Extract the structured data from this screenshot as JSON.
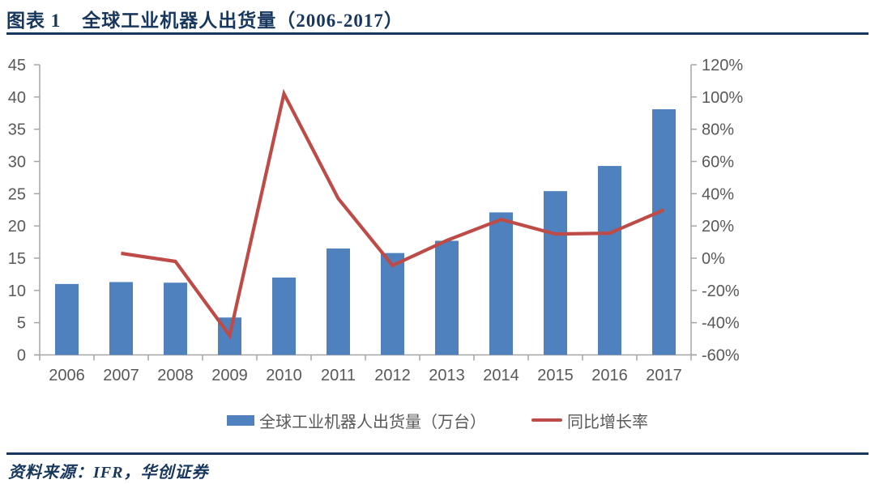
{
  "header": {
    "label": "图表  1",
    "title": "全球工业机器人出货量（2006-2017）"
  },
  "legend": {
    "bar_label": "全球工业机器人出货量（万台）",
    "line_label": "同比增长率"
  },
  "footer": {
    "source": "资料来源：IFR，华创证券"
  },
  "colors": {
    "navy": "#17375E",
    "bar": "#4E81BD",
    "line": "#BE4B48",
    "axis": "#A6A6A6",
    "label": "#595959"
  },
  "chart_data": {
    "type": "combo-bar-line",
    "title": "全球工业机器人出货量（2006-2017）",
    "categories": [
      "2006",
      "2007",
      "2008",
      "2009",
      "2010",
      "2011",
      "2012",
      "2013",
      "2014",
      "2015",
      "2016",
      "2017"
    ],
    "series": [
      {
        "name": "全球工业机器人出货量（万台）",
        "type": "bar",
        "axis": "left",
        "values": [
          11.0,
          11.3,
          11.2,
          5.8,
          12.0,
          16.5,
          15.8,
          17.7,
          22.1,
          25.4,
          29.3,
          38.1
        ]
      },
      {
        "name": "同比增长率",
        "type": "line",
        "axis": "right",
        "values": [
          null,
          3,
          -2,
          -48,
          102,
          37,
          -4.5,
          11,
          24,
          15,
          15.5,
          30
        ]
      }
    ],
    "left_axis": {
      "min": 0,
      "max": 45,
      "step": 5,
      "ticks": [
        "0",
        "5",
        "10",
        "15",
        "20",
        "25",
        "30",
        "35",
        "40",
        "45"
      ]
    },
    "right_axis": {
      "min": -60,
      "max": 120,
      "step": 20,
      "ticks": [
        "-60%",
        "-40%",
        "-20%",
        "0%",
        "20%",
        "40%",
        "60%",
        "80%",
        "100%",
        "120%"
      ]
    },
    "grid": false,
    "legend_position": "bottom"
  }
}
